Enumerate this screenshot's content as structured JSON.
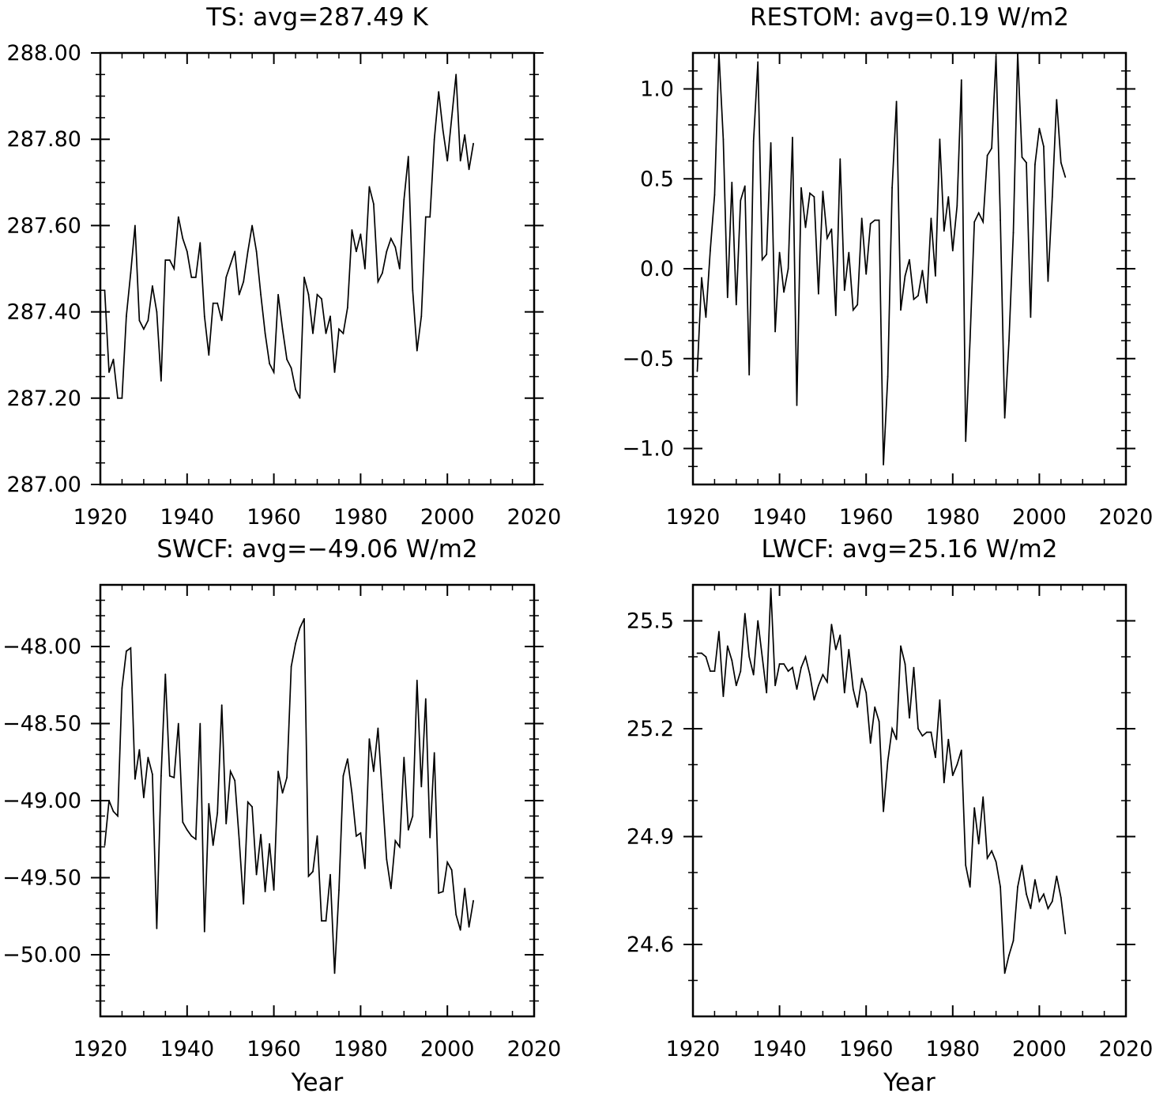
{
  "figure": {
    "line_color": "#000000",
    "background": "#ffffff"
  },
  "chart_data": [
    {
      "type": "line",
      "title": "TS: avg=287.49 K",
      "xlabel": "",
      "ylabel": "",
      "xlim": [
        1920,
        2020
      ],
      "ylim": [
        287.0,
        288.0
      ],
      "xticks": [
        1920,
        1940,
        1960,
        1980,
        2000,
        2020
      ],
      "xtick_labels": [
        "1920",
        "1940",
        "1960",
        "1980",
        "2000",
        "2020"
      ],
      "yticks": [
        287.0,
        287.2,
        287.4,
        287.6,
        287.8,
        288.0
      ],
      "ytick_labels": [
        "287.00",
        "287.20",
        "287.40",
        "287.60",
        "287.80",
        "288.00"
      ],
      "y_minor_step": 0.05,
      "x_start": 1921,
      "values": [
        287.45,
        287.26,
        287.29,
        287.2,
        287.2,
        287.39,
        287.49,
        287.6,
        287.38,
        287.36,
        287.38,
        287.46,
        287.4,
        287.24,
        287.52,
        287.52,
        287.5,
        287.62,
        287.57,
        287.54,
        287.48,
        287.48,
        287.56,
        287.39,
        287.3,
        287.42,
        287.42,
        287.38,
        287.48,
        287.51,
        287.54,
        287.44,
        287.47,
        287.54,
        287.6,
        287.54,
        287.44,
        287.35,
        287.28,
        287.26,
        287.44,
        287.36,
        287.29,
        287.27,
        287.22,
        287.2,
        287.48,
        287.44,
        287.35,
        287.44,
        287.43,
        287.35,
        287.39,
        287.26,
        287.36,
        287.35,
        287.41,
        287.59,
        287.54,
        287.58,
        287.5,
        287.69,
        287.65,
        287.47,
        287.49,
        287.54,
        287.57,
        287.55,
        287.5,
        287.66,
        287.76,
        287.45,
        287.31,
        287.39,
        287.62,
        287.62,
        287.8,
        287.91,
        287.82,
        287.75,
        287.85,
        287.95,
        287.75,
        287.81,
        287.73,
        287.79
      ]
    },
    {
      "type": "line",
      "title": "RESTOM: avg=0.19 W/m2",
      "xlabel": "",
      "ylabel": "",
      "xlim": [
        1920,
        2020
      ],
      "ylim": [
        -1.2,
        1.2
      ],
      "xticks": [
        1920,
        1940,
        1960,
        1980,
        2000,
        2020
      ],
      "xtick_labels": [
        "1920",
        "1940",
        "1960",
        "1980",
        "2000",
        "2020"
      ],
      "yticks": [
        -1.0,
        -0.5,
        0.0,
        0.5,
        1.0
      ],
      "ytick_labels": [
        "−1.0",
        "−0.5",
        "0.0",
        "0.5",
        "1.0"
      ],
      "y_minor_step": 0.1,
      "x_start": 1921,
      "values": [
        -0.57,
        -0.05,
        -0.27,
        0.1,
        0.41,
        1.2,
        0.72,
        -0.16,
        0.48,
        -0.2,
        0.38,
        0.46,
        -0.59,
        0.71,
        1.15,
        0.05,
        0.08,
        0.7,
        -0.35,
        0.09,
        -0.13,
        0.0,
        0.73,
        -0.76,
        0.45,
        0.23,
        0.42,
        0.4,
        -0.14,
        0.43,
        0.17,
        0.22,
        -0.26,
        0.61,
        -0.12,
        0.09,
        -0.23,
        -0.2,
        0.28,
        -0.03,
        0.25,
        0.27,
        0.27,
        -1.09,
        -0.6,
        0.45,
        0.93,
        -0.23,
        -0.04,
        0.05,
        -0.17,
        -0.15,
        -0.01,
        -0.19,
        0.28,
        -0.04,
        0.72,
        0.21,
        0.4,
        0.1,
        0.35,
        1.05,
        -0.96,
        -0.4,
        0.26,
        0.31,
        0.26,
        0.63,
        0.67,
        1.18,
        0.27,
        -0.83,
        -0.4,
        0.2,
        1.2,
        0.62,
        0.59,
        -0.27,
        0.58,
        0.78,
        0.68,
        -0.07,
        0.4,
        0.94,
        0.59,
        0.51
      ]
    },
    {
      "type": "line",
      "title": "SWCF: avg=−49.06 W/m2",
      "xlabel": "Year",
      "ylabel": "",
      "xlim": [
        1920,
        2020
      ],
      "ylim": [
        -50.4,
        -47.6
      ],
      "xticks": [
        1920,
        1940,
        1960,
        1980,
        2000,
        2020
      ],
      "xtick_labels": [
        "1920",
        "1940",
        "1960",
        "1980",
        "2000",
        "2020"
      ],
      "yticks": [
        -50.0,
        -49.5,
        -49.0,
        -48.5,
        -48.0
      ],
      "ytick_labels": [
        "−50.00",
        "−49.50",
        "−49.00",
        "−48.50",
        "−48.00"
      ],
      "y_minor_step": 0.1,
      "x_start": 1921,
      "values": [
        -49.29,
        -49.0,
        -49.07,
        -49.1,
        -48.27,
        -48.03,
        -48.01,
        -48.86,
        -48.67,
        -48.98,
        -48.72,
        -48.83,
        -49.83,
        -48.84,
        -48.18,
        -48.84,
        -48.85,
        -48.5,
        -49.14,
        -49.19,
        -49.23,
        -49.25,
        -48.5,
        -49.85,
        -49.02,
        -49.29,
        -49.08,
        -48.38,
        -49.15,
        -48.81,
        -48.87,
        -49.25,
        -49.67,
        -49.01,
        -49.04,
        -49.48,
        -49.22,
        -49.59,
        -49.28,
        -49.58,
        -48.81,
        -48.95,
        -48.85,
        -48.13,
        -47.98,
        -47.88,
        -47.82,
        -49.49,
        -49.46,
        -49.23,
        -49.78,
        -49.78,
        -49.48,
        -50.12,
        -49.58,
        -48.84,
        -48.73,
        -48.95,
        -49.23,
        -49.21,
        -49.44,
        -48.6,
        -48.81,
        -48.53,
        -48.96,
        -49.38,
        -49.57,
        -49.26,
        -49.3,
        -48.72,
        -49.19,
        -49.1,
        -48.22,
        -48.91,
        -48.34,
        -49.24,
        -48.69,
        -49.6,
        -49.59,
        -49.4,
        -49.45,
        -49.74,
        -49.84,
        -49.57,
        -49.82,
        -49.65
      ]
    },
    {
      "type": "line",
      "title": "LWCF: avg=25.16 W/m2",
      "xlabel": "Year",
      "ylabel": "",
      "xlim": [
        1920,
        2020
      ],
      "ylim": [
        24.4,
        25.6
      ],
      "xticks": [
        1920,
        1940,
        1960,
        1980,
        2000,
        2020
      ],
      "xtick_labels": [
        "1920",
        "1940",
        "1960",
        "1980",
        "2000",
        "2020"
      ],
      "yticks": [
        24.6,
        24.9,
        25.2,
        25.5
      ],
      "ytick_labels": [
        "24.6",
        "24.9",
        "25.2",
        "25.5"
      ],
      "y_minor_step": 0.1,
      "x_start": 1921,
      "values": [
        25.41,
        25.41,
        25.4,
        25.36,
        25.36,
        25.47,
        25.29,
        25.43,
        25.39,
        25.32,
        25.36,
        25.52,
        25.4,
        25.35,
        25.5,
        25.4,
        25.3,
        25.59,
        25.32,
        25.38,
        25.38,
        25.36,
        25.37,
        25.31,
        25.37,
        25.4,
        25.35,
        25.28,
        25.32,
        25.35,
        25.33,
        25.49,
        25.42,
        25.46,
        25.3,
        25.42,
        25.31,
        25.26,
        25.34,
        25.3,
        25.16,
        25.26,
        25.22,
        24.97,
        25.11,
        25.2,
        25.17,
        25.43,
        25.38,
        25.23,
        25.37,
        25.2,
        25.18,
        25.19,
        25.19,
        25.12,
        25.28,
        25.05,
        25.17,
        25.07,
        25.1,
        25.14,
        24.82,
        24.76,
        24.98,
        24.88,
        25.01,
        24.84,
        24.86,
        24.83,
        24.76,
        24.52,
        24.57,
        24.61,
        24.76,
        24.82,
        24.74,
        24.7,
        24.78,
        24.72,
        24.74,
        24.7,
        24.72,
        24.79,
        24.73,
        24.63
      ]
    }
  ]
}
